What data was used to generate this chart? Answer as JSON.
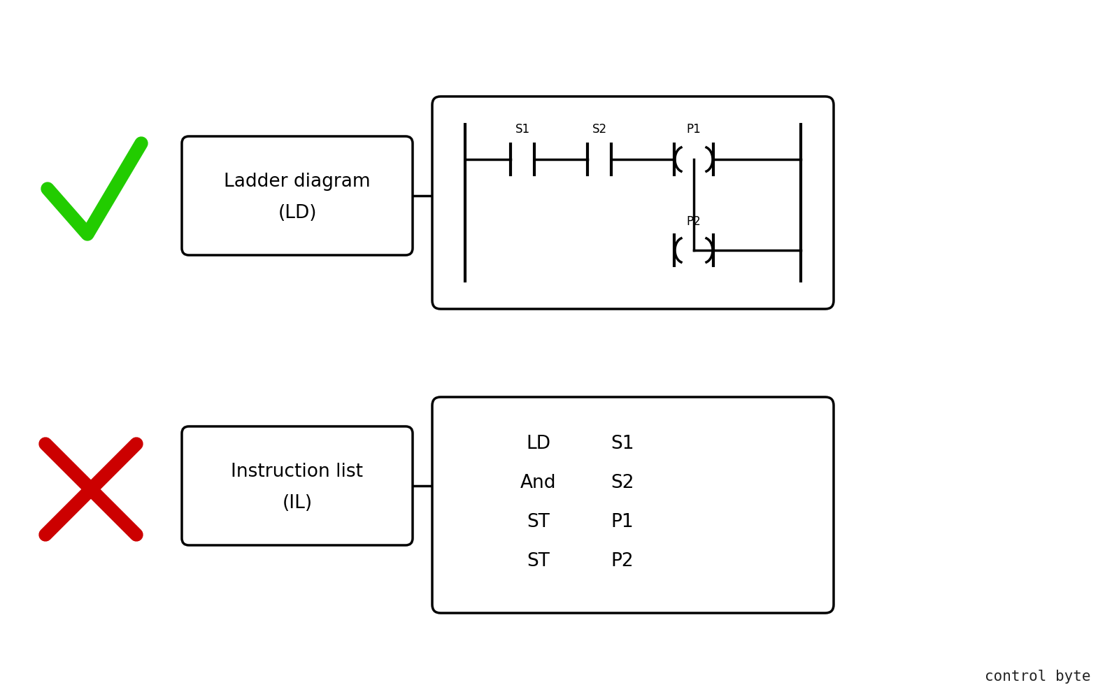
{
  "bg_color": "#ffffff",
  "text_color": "#000000",
  "green_check_color": "#22cc00",
  "red_x_color": "#cc0000",
  "box1_label_line1": "Ladder diagram",
  "box1_label_line2": "(LD)",
  "box2_label_line1": "Instruction list",
  "box2_label_line2": "(IL)",
  "il_lines": [
    "LD",
    "And",
    "ST",
    "ST"
  ],
  "il_args": [
    "S1",
    "S2",
    "P1",
    "P2"
  ],
  "brand_text": "control byte",
  "brand_color": "#222222",
  "lw": 2.5
}
